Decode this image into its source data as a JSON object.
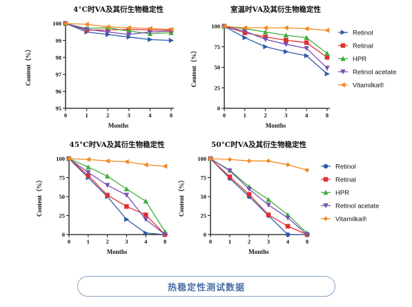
{
  "figure": {
    "caption": "热稳定性测试数据",
    "colors": {
      "Retinol": "#2e5aa8",
      "Retinal": "#e03030",
      "HPR": "#3cae3c",
      "Retinol acetate": "#7a4fb0",
      "Vitamilka®": "#f08a24"
    },
    "markers": {
      "Retinol": "triangle-right",
      "Retinal": "square",
      "HPR": "triangle-up",
      "Retinol acetate": "triangle-down",
      "Vitamilka®": "triangle-left"
    }
  },
  "chart_data": [
    {
      "type": "line",
      "title": "4°C时VA及其衍生物稳定性",
      "xlabel": "Months",
      "ylabel": "Content（%）",
      "x": [
        "0",
        "1",
        "2",
        "3",
        "4",
        "8"
      ],
      "ylim": [
        95,
        100
      ],
      "yticks": [
        "95",
        "96",
        "97",
        "98",
        "99",
        "100"
      ],
      "legend": "none",
      "series": [
        {
          "name": "Retinol",
          "values": [
            100,
            99.5,
            99.35,
            99.2,
            99.05,
            99.0
          ]
        },
        {
          "name": "Retinal",
          "values": [
            100,
            99.6,
            99.62,
            99.65,
            99.62,
            99.6
          ]
        },
        {
          "name": "HPR",
          "values": [
            100,
            99.7,
            99.75,
            99.55,
            99.4,
            99.45
          ]
        },
        {
          "name": "Retinol acetate",
          "values": [
            100,
            99.65,
            99.5,
            99.35,
            99.5,
            99.55
          ]
        },
        {
          "name": "Vitamilka®",
          "values": [
            100,
            99.95,
            99.8,
            99.75,
            99.7,
            99.65
          ]
        }
      ]
    },
    {
      "type": "line",
      "title": "室温时VA及其衍生物稳定性",
      "xlabel": "Months",
      "ylabel": "Content（%）",
      "x": [
        "0",
        "1",
        "2",
        "3",
        "4",
        "8"
      ],
      "ylim": [
        0,
        100
      ],
      "yticks": [
        "0",
        "25",
        "50",
        "75",
        "100"
      ],
      "legend": "right",
      "series": [
        {
          "name": "Retinol",
          "values": [
            100,
            86,
            75,
            69,
            64,
            42
          ]
        },
        {
          "name": "Retinal",
          "values": [
            100,
            92,
            87,
            83,
            80,
            62
          ]
        },
        {
          "name": "HPR",
          "values": [
            100,
            97,
            93,
            89,
            86,
            67
          ]
        },
        {
          "name": "Retinol acetate",
          "values": [
            100,
            94,
            84,
            78,
            73,
            49
          ]
        },
        {
          "name": "Vitamilka®",
          "values": [
            100,
            98,
            98,
            98,
            97,
            95
          ]
        }
      ]
    },
    {
      "type": "line",
      "title": "45°C时VA及其衍生物稳定性",
      "xlabel": "Months",
      "ylabel": "Content（%）",
      "x": [
        "0",
        "1",
        "2",
        "3",
        "4",
        "8"
      ],
      "ylim": [
        0,
        100
      ],
      "yticks": [
        "0",
        "25",
        "50",
        "75",
        "100"
      ],
      "legend": "none",
      "series": [
        {
          "name": "Retinol",
          "values": [
            100,
            75,
            50,
            20,
            2,
            0
          ]
        },
        {
          "name": "Retinal",
          "values": [
            100,
            78,
            52,
            37,
            26,
            0
          ]
        },
        {
          "name": "HPR",
          "values": [
            100,
            89,
            77,
            60,
            44,
            4
          ]
        },
        {
          "name": "Retinol acetate",
          "values": [
            100,
            82,
            65,
            52,
            20,
            0
          ]
        },
        {
          "name": "Vitamilka®",
          "values": [
            100,
            99,
            97,
            96,
            92,
            90
          ]
        }
      ]
    },
    {
      "type": "line",
      "title": "50°C时VA及其衍生物稳定性",
      "xlabel": "Months",
      "ylabel": "Content（%）",
      "x": [
        "0",
        "1",
        "2",
        "3",
        "4",
        "8"
      ],
      "ylim": [
        0,
        100
      ],
      "yticks": [
        "0",
        "25",
        "50",
        "75",
        "100"
      ],
      "legend": "right",
      "series": [
        {
          "name": "Retinol",
          "values": [
            100,
            74,
            50,
            25,
            0,
            0
          ]
        },
        {
          "name": "Retinal",
          "values": [
            100,
            76,
            53,
            26,
            11,
            0
          ]
        },
        {
          "name": "HPR",
          "values": [
            100,
            85,
            63,
            46,
            26,
            2
          ]
        },
        {
          "name": "Retinol acetate",
          "values": [
            100,
            84,
            60,
            39,
            22,
            0
          ]
        },
        {
          "name": "Vitamilka®",
          "values": [
            100,
            99,
            97,
            97,
            92,
            85
          ]
        }
      ]
    }
  ]
}
